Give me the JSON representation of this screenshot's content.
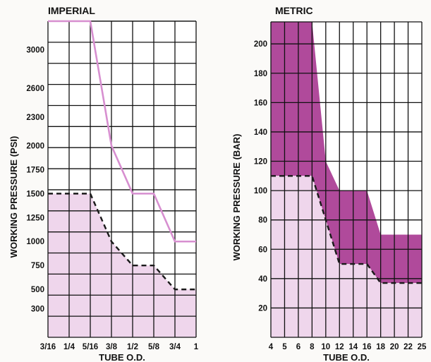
{
  "chart_data": [
    {
      "type": "area",
      "title": "IMPERIAL",
      "xlabel": "TUBE O.D.",
      "ylabel": "WORKING PRESSURE (PSI)",
      "categories": [
        "3/16",
        "1/4",
        "5/16",
        "3/8",
        "1/2",
        "5/8",
        "3/4",
        "1"
      ],
      "yticks": [
        300,
        500,
        750,
        1000,
        1250,
        1500,
        1750,
        2000,
        2300,
        2600,
        3000
      ],
      "ylim": [
        0,
        3300
      ],
      "grid": true,
      "series": [
        {
          "style": "solid-line",
          "color": "#d78fd0",
          "values": [
            3300,
            3300,
            3300,
            2000,
            1500,
            1500,
            1000,
            1000
          ]
        },
        {
          "style": "dashed-line-filled",
          "color": "#1a1a1a",
          "fill": "#efd6ec",
          "values": [
            1500,
            1500,
            1500,
            1000,
            750,
            750,
            500,
            500
          ]
        }
      ]
    },
    {
      "type": "area",
      "title": "METRIC",
      "xlabel": "TUBE O.D.",
      "ylabel": "WORKING PRESSURE (BAR)",
      "categories": [
        "4",
        "5",
        "6",
        "8",
        "10",
        "12",
        "14",
        "16",
        "18",
        "20",
        "22",
        "25"
      ],
      "yticks": [
        20,
        40,
        60,
        80,
        100,
        120,
        140,
        160,
        180,
        200
      ],
      "ylim": [
        0,
        215
      ],
      "grid": true,
      "series": [
        {
          "style": "upper-band",
          "color": "#b04a9b",
          "values": [
            215,
            215,
            215,
            215,
            120,
            100,
            100,
            100,
            70,
            70,
            70,
            70
          ]
        },
        {
          "style": "dashed-line-filled",
          "color": "#1a1a1a",
          "fill": "#efd6ec",
          "values": [
            110,
            110,
            110,
            110,
            80,
            50,
            50,
            50,
            37,
            37,
            37,
            37
          ]
        }
      ]
    }
  ]
}
